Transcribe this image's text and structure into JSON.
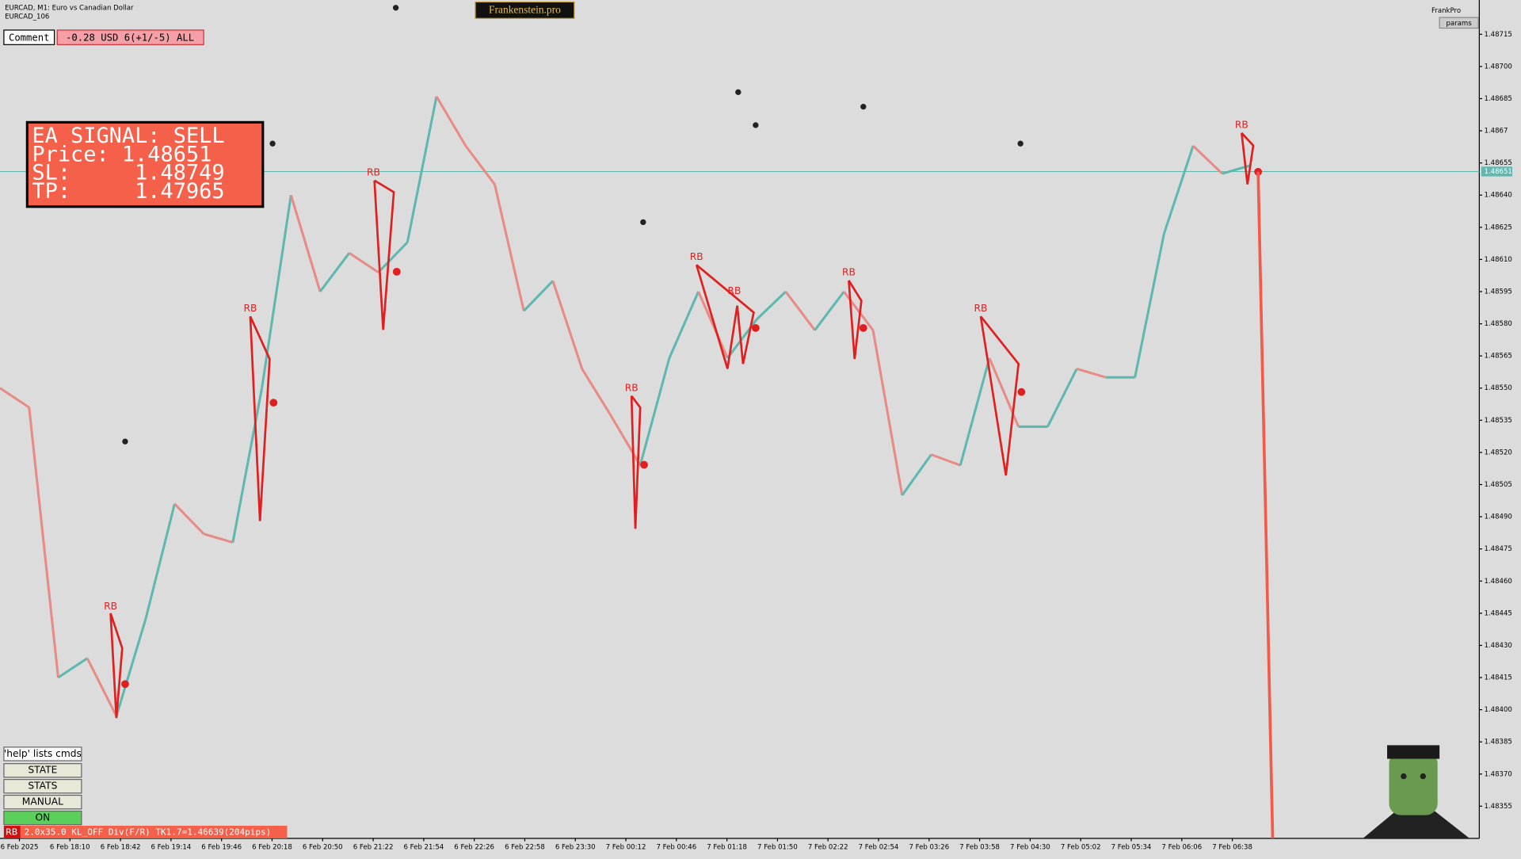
{
  "header": {
    "symbol": "EURCAD, M1:  Euro vs Canadian Dollar",
    "account": "EURCAD_106",
    "brand": "Frankenstein.pro",
    "user": "FrankPro",
    "params": "params"
  },
  "comment": {
    "label": "Comment",
    "text": "-0.28 USD 6(+1/-5) ALL"
  },
  "signal": {
    "title": "EA SIGNAL: SELL",
    "price": "Price: 1.48651",
    "sl": "SL:     1.48749",
    "tp": "TP:     1.47965"
  },
  "buttons": {
    "help": "'help' lists cmds",
    "items": [
      "STATE",
      "STATS",
      "MANUAL",
      "ON"
    ]
  },
  "status": {
    "tag": "RB",
    "text": "2.0x35.0 KL_OFF Div(F/R) TK1.7=1.46639(204pips)"
  },
  "chart_data": {
    "type": "line",
    "current_price": 1.48651,
    "annotations": [
      "RB",
      "RB",
      "RB",
      "RB",
      "RB",
      "RB",
      "RB",
      "RB",
      "RB"
    ],
    "x_labels": [
      "6 Feb 2025",
      "6 Feb 18:10",
      "6 Feb 18:42",
      "6 Feb 19:14",
      "6 Feb 19:46",
      "6 Feb 20:18",
      "6 Feb 20:50",
      "6 Feb 21:22",
      "6 Feb 21:54",
      "6 Feb 22:26",
      "6 Feb 22:58",
      "6 Feb 23:30",
      "7 Feb 00:12",
      "7 Feb 00:46",
      "7 Feb 01:18",
      "7 Feb 01:50",
      "7 Feb 02:22",
      "7 Feb 02:54",
      "7 Feb 03:26",
      "7 Feb 03:58",
      "7 Feb 04:30",
      "7 Feb 05:02",
      "7 Feb 05:34",
      "7 Feb 06:06",
      "7 Feb 06:38"
    ],
    "series": [
      {
        "name": "EURCAD",
        "color": "#5fb8b0",
        "down_color": "#e88a86",
        "values": [
          1.4855,
          1.48541,
          1.48415,
          1.48424,
          1.48397,
          1.48442,
          1.48496,
          1.48482,
          1.48478,
          1.4855,
          1.4864,
          1.48595,
          1.48613,
          1.48604,
          1.48618,
          1.48686,
          1.48663,
          1.48645,
          1.48586,
          1.486,
          1.48559,
          1.48537,
          1.48514,
          1.48564,
          1.48595,
          1.48564,
          1.48582,
          1.48595,
          1.48577,
          1.48595,
          1.48577,
          1.485,
          1.48519,
          1.48514,
          1.48564,
          1.48532,
          1.48532,
          1.48559,
          1.48555,
          1.48555,
          1.48622,
          1.48663,
          1.4865,
          1.48654
        ]
      }
    ],
    "ylim": [
      1.4834,
      1.48731
    ],
    "yticks": [
      1.48715,
      {
        "value": 1.487,
        "label": "1.48700"
      },
      1.48685,
      1.4867,
      1.48655,
      {
        "value": 1.4864,
        "label": "1.48640"
      },
      1.48625,
      {
        "value": 1.4861,
        "label": "1.48610"
      },
      1.48595,
      {
        "value": 1.4858,
        "label": "1.48580"
      },
      1.48565,
      {
        "value": 1.4855,
        "label": "1.48550"
      },
      1.48535,
      {
        "value": 1.4852,
        "label": "1.48520"
      },
      1.48505,
      {
        "value": 1.4849,
        "label": "1.48490"
      },
      1.48475,
      {
        "value": 1.4846,
        "label": "1.48460"
      },
      1.48445,
      {
        "value": 1.4843,
        "label": "1.48430"
      },
      1.48415,
      {
        "value": 1.484,
        "label": "1.48400"
      },
      1.48385,
      {
        "value": 1.4837,
        "label": "1.48370"
      },
      1.48355
    ]
  }
}
